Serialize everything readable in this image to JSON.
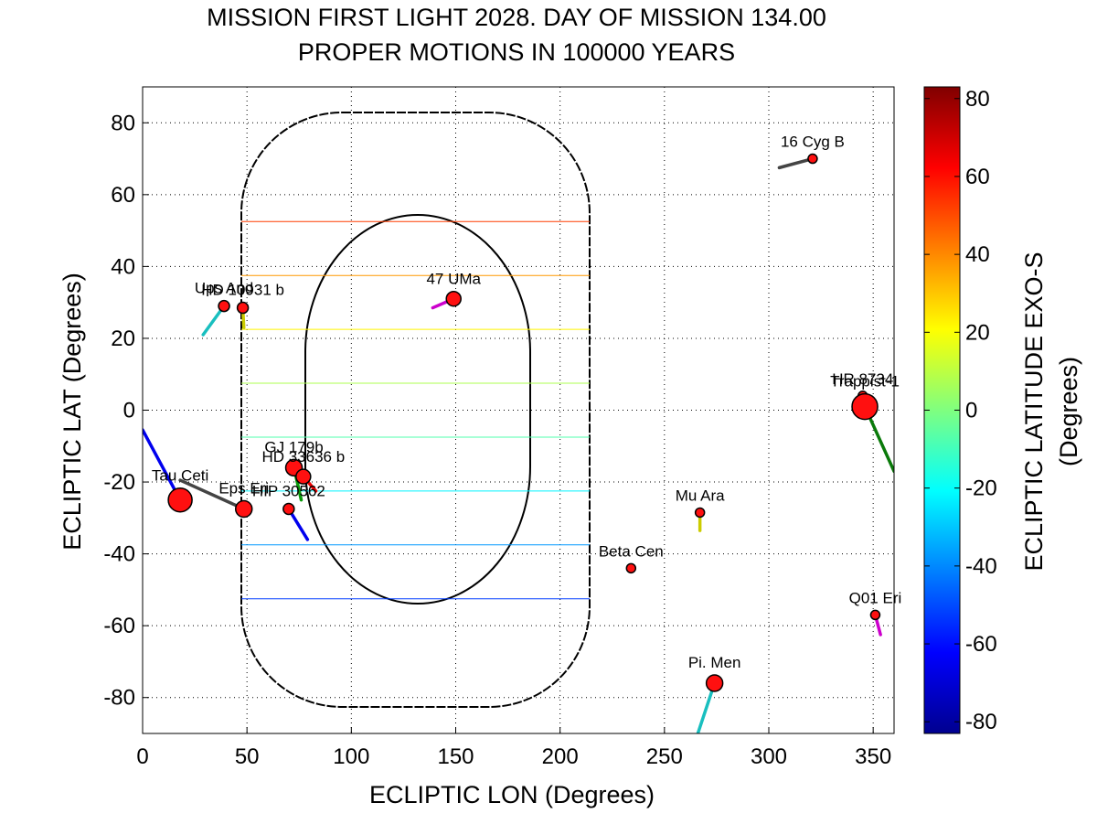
{
  "chart_data": {
    "type": "scatter",
    "title": [
      "MISSION FIRST LIGHT 2028. DAY OF MISSION 134.00",
      "PROPER MOTIONS IN 100000 YEARS"
    ],
    "xlabel": "ECLIPTIC LON (Degrees)",
    "ylabel": "ECLIPTIC LAT (Degrees)",
    "xlim": [
      0,
      360
    ],
    "ylim": [
      -90,
      90
    ],
    "xticks": [
      "0",
      "50",
      "100",
      "150",
      "200",
      "250",
      "300",
      "350"
    ],
    "yticks": [
      "-80",
      "-60",
      "-40",
      "-20",
      "0",
      "20",
      "40",
      "60",
      "80"
    ],
    "grid": true,
    "colorbar": {
      "label": [
        "ECLIPTIC LATITUDE EXO-S",
        "(Degrees)"
      ],
      "range": [
        -83,
        83
      ],
      "ticks": [
        "-80",
        "-60",
        "-40",
        "-20",
        "0",
        "20",
        "40",
        "60",
        "80"
      ],
      "colormap": "jet"
    },
    "stars": [
      {
        "name": "16 Cyg B",
        "lon": 321,
        "lat": 70,
        "size": 5,
        "pm_lon": 305,
        "pm_lat": 67.5,
        "pm_color": "#444444"
      },
      {
        "name": "47 UMa",
        "lon": 149,
        "lat": 31,
        "size": 8,
        "pm_lon": 139,
        "pm_lat": 28.5,
        "pm_color": "#cc00cc"
      },
      {
        "name": "Ups And",
        "lon": 39,
        "lat": 29,
        "size": 6,
        "pm_lon": 29,
        "pm_lat": 21,
        "pm_color": "#19bfbf"
      },
      {
        "name": "HD 10931 b",
        "lon": 48,
        "lat": 28.5,
        "size": 6,
        "pm_lon": 48.5,
        "pm_lat": 23,
        "pm_color": "#cccc00"
      },
      {
        "name": "HR 8734",
        "lon": 345,
        "lat": 4,
        "size": 5,
        "pm_lon": 345,
        "pm_lat": 4,
        "pm_color": "#cccc00"
      },
      {
        "name": "Trappist-1",
        "lon": 346,
        "lat": 1,
        "size": 14,
        "pm_lon": 360,
        "pm_lat": -17,
        "pm_color": "#0a7a0a"
      },
      {
        "name": "Tau Ceti",
        "lon": 18,
        "lat": -25,
        "size": 13,
        "pm_lon": 0,
        "pm_lat": -5.5,
        "pm_color": "#0000ee"
      },
      {
        "name": "Eps Eri",
        "lon": 48.5,
        "lat": -27.5,
        "size": 9,
        "pm_lon": 18,
        "pm_lat": -19.5,
        "pm_color": "#444444"
      },
      {
        "name": "GJ 179b",
        "lon": 72.5,
        "lat": -16,
        "size": 9,
        "pm_lon": 76,
        "pm_lat": -25,
        "pm_color": "#0a9a0a"
      },
      {
        "name": "HD 33636 b",
        "lon": 77,
        "lat": -18.5,
        "size": 8,
        "pm_lon": 83,
        "pm_lat": -22.5,
        "pm_color": "#ee0000"
      },
      {
        "name": "HIP 30562",
        "lon": 70,
        "lat": -27.5,
        "size": 6,
        "pm_lon": 79,
        "pm_lat": -36,
        "pm_color": "#0000ee"
      },
      {
        "name": "Mu Ara",
        "lon": 267,
        "lat": -28.5,
        "size": 5,
        "pm_lon": 267,
        "pm_lat": -33.5,
        "pm_color": "#cccc00"
      },
      {
        "name": "Beta Cen",
        "lon": 234,
        "lat": -44,
        "size": 5,
        "pm_lon": 234,
        "pm_lat": -44,
        "pm_color": "#444444"
      },
      {
        "name": "Q01 Eri",
        "lon": 351,
        "lat": -57,
        "size": 5,
        "pm_lon": 353.5,
        "pm_lat": -62.5,
        "pm_color": "#cc00cc"
      },
      {
        "name": "Pi. Men",
        "lon": 274,
        "lat": -76,
        "size": 9,
        "pm_lon": 266,
        "pm_lat": -90,
        "pm_color": "#19bfbf"
      }
    ]
  }
}
